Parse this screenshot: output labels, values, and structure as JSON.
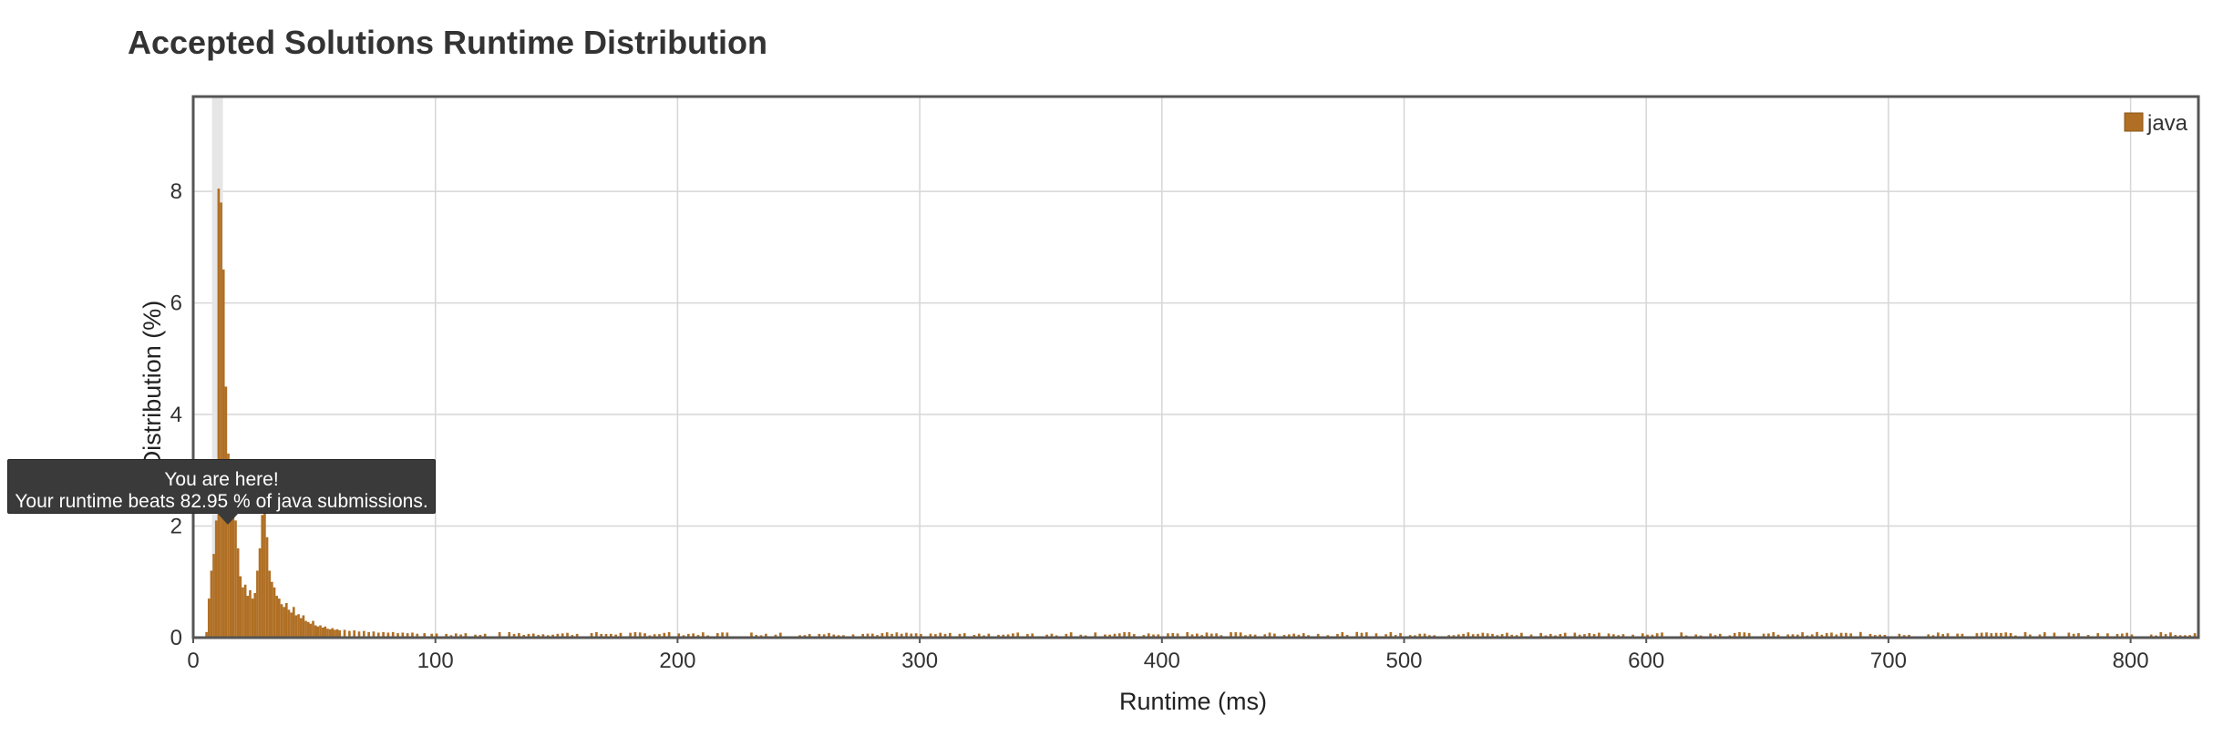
{
  "header": {
    "title": "Accepted Solutions Runtime Distribution"
  },
  "chart_data": {
    "type": "bar",
    "title": "Accepted Solutions Runtime Distribution",
    "xlabel": "Runtime (ms)",
    "ylabel": "Distribution (%)",
    "xlim": [
      0,
      828
    ],
    "ylim": [
      0,
      9.7
    ],
    "xticks": [
      0,
      100,
      200,
      300,
      400,
      500,
      600,
      700,
      800
    ],
    "yticks": [
      0,
      2,
      4,
      6,
      8
    ],
    "grid": true,
    "legend": {
      "position": "top-right",
      "entries": [
        "java"
      ]
    },
    "series": [
      {
        "name": "java",
        "color": "#b06f24",
        "bin_width_ms": 1,
        "peak_bins": [
          {
            "x": 5,
            "y": 0.1
          },
          {
            "x": 6,
            "y": 0.7
          },
          {
            "x": 7,
            "y": 1.2
          },
          {
            "x": 8,
            "y": 1.5
          },
          {
            "x": 9,
            "y": 2.1
          },
          {
            "x": 10,
            "y": 8.05
          },
          {
            "x": 11,
            "y": 7.8
          },
          {
            "x": 12,
            "y": 6.6
          },
          {
            "x": 13,
            "y": 4.5
          },
          {
            "x": 14,
            "y": 3.3
          },
          {
            "x": 15,
            "y": 3.1
          },
          {
            "x": 16,
            "y": 2.8
          },
          {
            "x": 17,
            "y": 2.1
          },
          {
            "x": 18,
            "y": 1.6
          },
          {
            "x": 19,
            "y": 1.1
          },
          {
            "x": 20,
            "y": 0.9
          },
          {
            "x": 21,
            "y": 0.95
          },
          {
            "x": 22,
            "y": 0.75
          },
          {
            "x": 23,
            "y": 0.85
          },
          {
            "x": 24,
            "y": 0.7
          },
          {
            "x": 25,
            "y": 0.8
          },
          {
            "x": 26,
            "y": 1.2
          },
          {
            "x": 27,
            "y": 1.6
          },
          {
            "x": 28,
            "y": 2.2
          },
          {
            "x": 29,
            "y": 2.25
          },
          {
            "x": 30,
            "y": 1.8
          },
          {
            "x": 31,
            "y": 1.2
          },
          {
            "x": 32,
            "y": 1.0
          },
          {
            "x": 33,
            "y": 0.9
          },
          {
            "x": 34,
            "y": 0.75
          },
          {
            "x": 35,
            "y": 0.7
          },
          {
            "x": 36,
            "y": 0.6
          },
          {
            "x": 37,
            "y": 0.55
          },
          {
            "x": 38,
            "y": 0.62
          },
          {
            "x": 39,
            "y": 0.5
          },
          {
            "x": 40,
            "y": 0.45
          },
          {
            "x": 41,
            "y": 0.55
          },
          {
            "x": 42,
            "y": 0.4
          },
          {
            "x": 43,
            "y": 0.42
          },
          {
            "x": 44,
            "y": 0.35
          },
          {
            "x": 45,
            "y": 0.4
          },
          {
            "x": 46,
            "y": 0.3
          },
          {
            "x": 47,
            "y": 0.28
          },
          {
            "x": 48,
            "y": 0.25
          },
          {
            "x": 49,
            "y": 0.3
          },
          {
            "x": 50,
            "y": 0.22
          },
          {
            "x": 51,
            "y": 0.2
          },
          {
            "x": 52,
            "y": 0.22
          },
          {
            "x": 53,
            "y": 0.18
          },
          {
            "x": 54,
            "y": 0.2
          },
          {
            "x": 55,
            "y": 0.16
          },
          {
            "x": 56,
            "y": 0.15
          },
          {
            "x": 57,
            "y": 0.17
          },
          {
            "x": 58,
            "y": 0.14
          },
          {
            "x": 59,
            "y": 0.15
          },
          {
            "x": 60,
            "y": 0.13
          },
          {
            "x": 62,
            "y": 0.14
          },
          {
            "x": 64,
            "y": 0.12
          },
          {
            "x": 66,
            "y": 0.13
          },
          {
            "x": 68,
            "y": 0.11
          },
          {
            "x": 70,
            "y": 0.12
          },
          {
            "x": 72,
            "y": 0.1
          },
          {
            "x": 74,
            "y": 0.11
          },
          {
            "x": 76,
            "y": 0.09
          },
          {
            "x": 78,
            "y": 0.1
          },
          {
            "x": 80,
            "y": 0.09
          },
          {
            "x": 82,
            "y": 0.1
          },
          {
            "x": 84,
            "y": 0.08
          },
          {
            "x": 86,
            "y": 0.09
          },
          {
            "x": 88,
            "y": 0.08
          },
          {
            "x": 90,
            "y": 0.09
          },
          {
            "x": 92,
            "y": 0.07
          },
          {
            "x": 95,
            "y": 0.08
          },
          {
            "x": 98,
            "y": 0.07
          }
        ],
        "tail_range": [
          100,
          827
        ],
        "tail_level": 0.07
      }
    ],
    "highlight": {
      "x": 10,
      "label": "You are here!"
    }
  },
  "tooltip": {
    "line1": "You are here!",
    "line2": "Your runtime beats 82.95 % of java submissions."
  }
}
